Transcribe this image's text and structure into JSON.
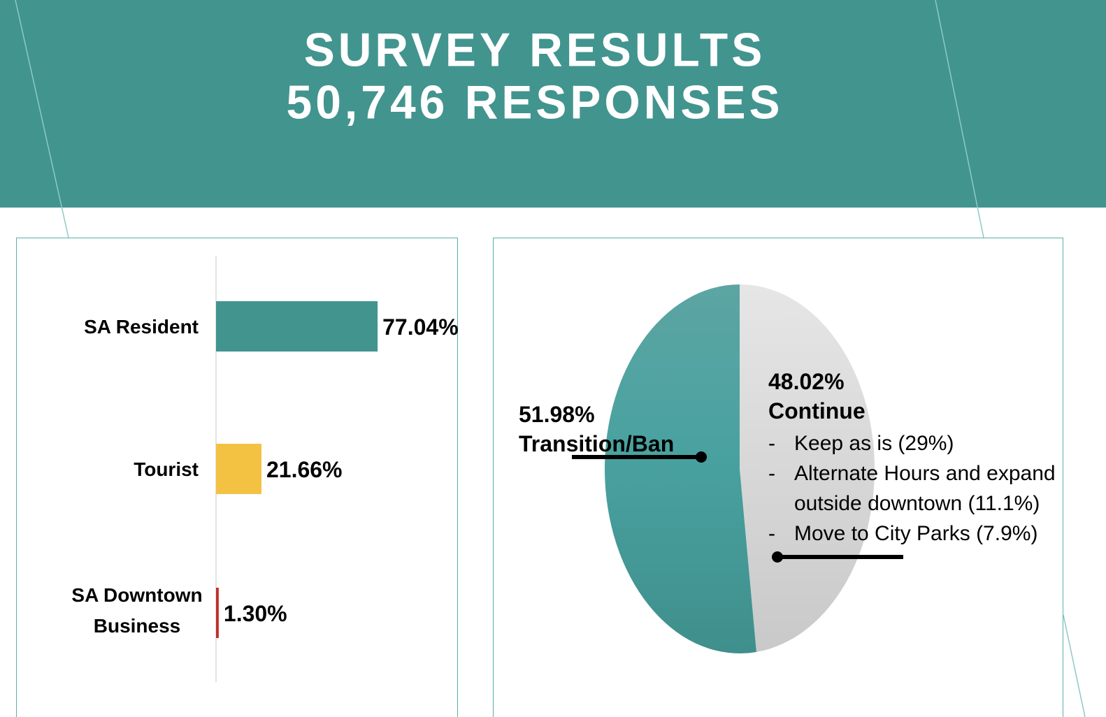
{
  "header": {
    "title_line1": "SURVEY RESULTS",
    "title_line2": "50,746 RESPONSES"
  },
  "colors": {
    "teal": "#42948F",
    "yellow": "#F4C243",
    "red": "#C0302A",
    "gray": "#DCDCDC",
    "text": "#000000"
  },
  "chart_data": [
    {
      "type": "bar",
      "orientation": "horizontal",
      "categories": [
        "SA Resident",
        "Tourist",
        "SA Downtown Business"
      ],
      "category_lines": [
        [
          "SA Resident"
        ],
        [
          "Tourist"
        ],
        [
          "SA Downtown",
          "Business"
        ]
      ],
      "values": [
        77.04,
        21.66,
        1.3
      ],
      "value_labels": [
        "77.04%",
        "21.66%",
        "1.30%"
      ],
      "colors": [
        "#42948F",
        "#F4C243",
        "#C0302A"
      ],
      "unit": "%",
      "title": "",
      "xlabel": "",
      "ylabel": "",
      "xlim": [
        0,
        100
      ],
      "grid": false,
      "legend": "none"
    },
    {
      "type": "pie",
      "labels": [
        "Transition/Ban",
        "Continue"
      ],
      "values": [
        51.98,
        48.02
      ],
      "value_labels": [
        "51.98%",
        "48.02%"
      ],
      "colors": [
        "#42948F",
        "#DCDCDC"
      ],
      "title": "",
      "legend": "none",
      "continue_breakdown": [
        {
          "bullet": "-",
          "lines": [
            "Keep as is (29%)"
          ]
        },
        {
          "bullet": "-",
          "lines": [
            "Alternate Hours and expand",
            "outside downtown (11.1%)"
          ]
        },
        {
          "bullet": "-",
          "lines": [
            "Move to City Parks (7.9%)"
          ]
        }
      ]
    }
  ]
}
